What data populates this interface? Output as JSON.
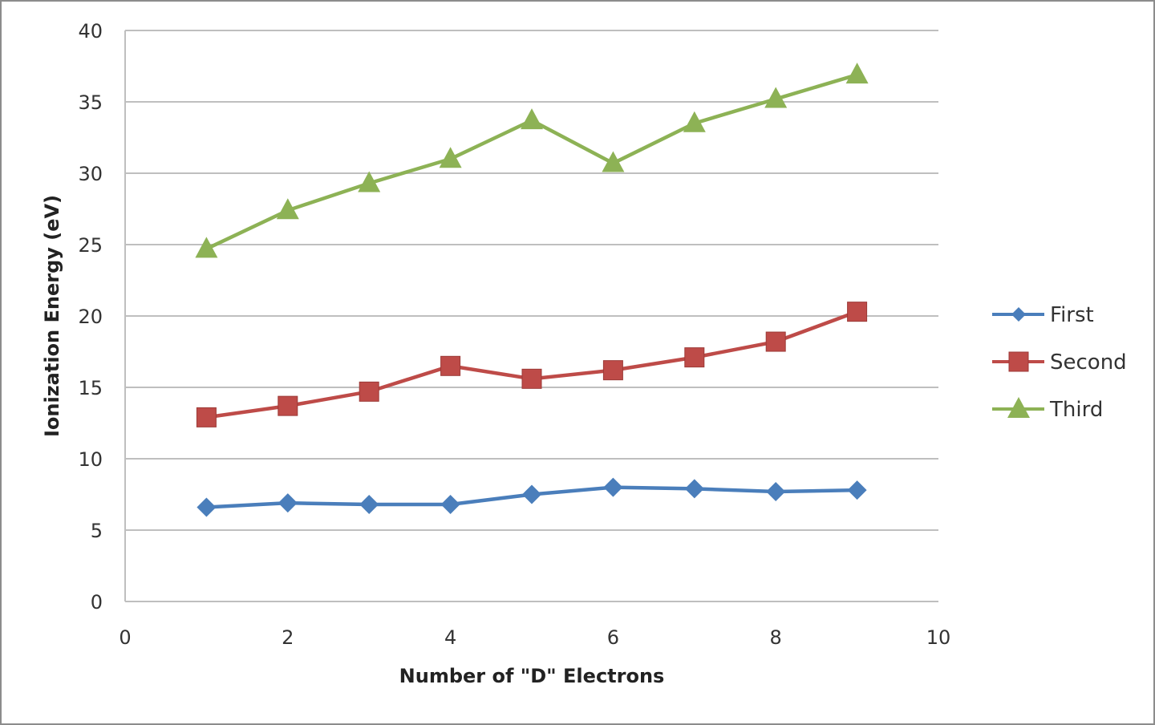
{
  "chart_data": {
    "type": "line",
    "title": "",
    "xlabel": "Number of \"D\" Electrons",
    "ylabel": "Ionization Energy (eV)",
    "xlim": [
      0,
      10
    ],
    "ylim": [
      0,
      40
    ],
    "x_ticks": [
      0,
      2,
      4,
      6,
      8,
      10
    ],
    "y_ticks": [
      0,
      5,
      10,
      15,
      20,
      25,
      30,
      35,
      40
    ],
    "grid": "horizontal",
    "legend_position": "right",
    "x": [
      1,
      2,
      3,
      4,
      5,
      6,
      7,
      8,
      9
    ],
    "series": [
      {
        "name": "First",
        "color": "#4a7ebb",
        "marker": "diamond",
        "values": [
          6.6,
          6.9,
          6.8,
          6.8,
          7.5,
          8.0,
          7.9,
          7.7,
          7.8
        ]
      },
      {
        "name": "Second",
        "color": "#be4b48",
        "marker": "square",
        "values": [
          12.9,
          13.7,
          14.7,
          16.5,
          15.6,
          16.2,
          17.1,
          18.2,
          20.3
        ]
      },
      {
        "name": "Third",
        "color": "#8db255",
        "marker": "triangle",
        "values": [
          24.7,
          27.4,
          29.3,
          31.0,
          33.7,
          30.7,
          33.5,
          35.2,
          36.9
        ]
      }
    ]
  }
}
